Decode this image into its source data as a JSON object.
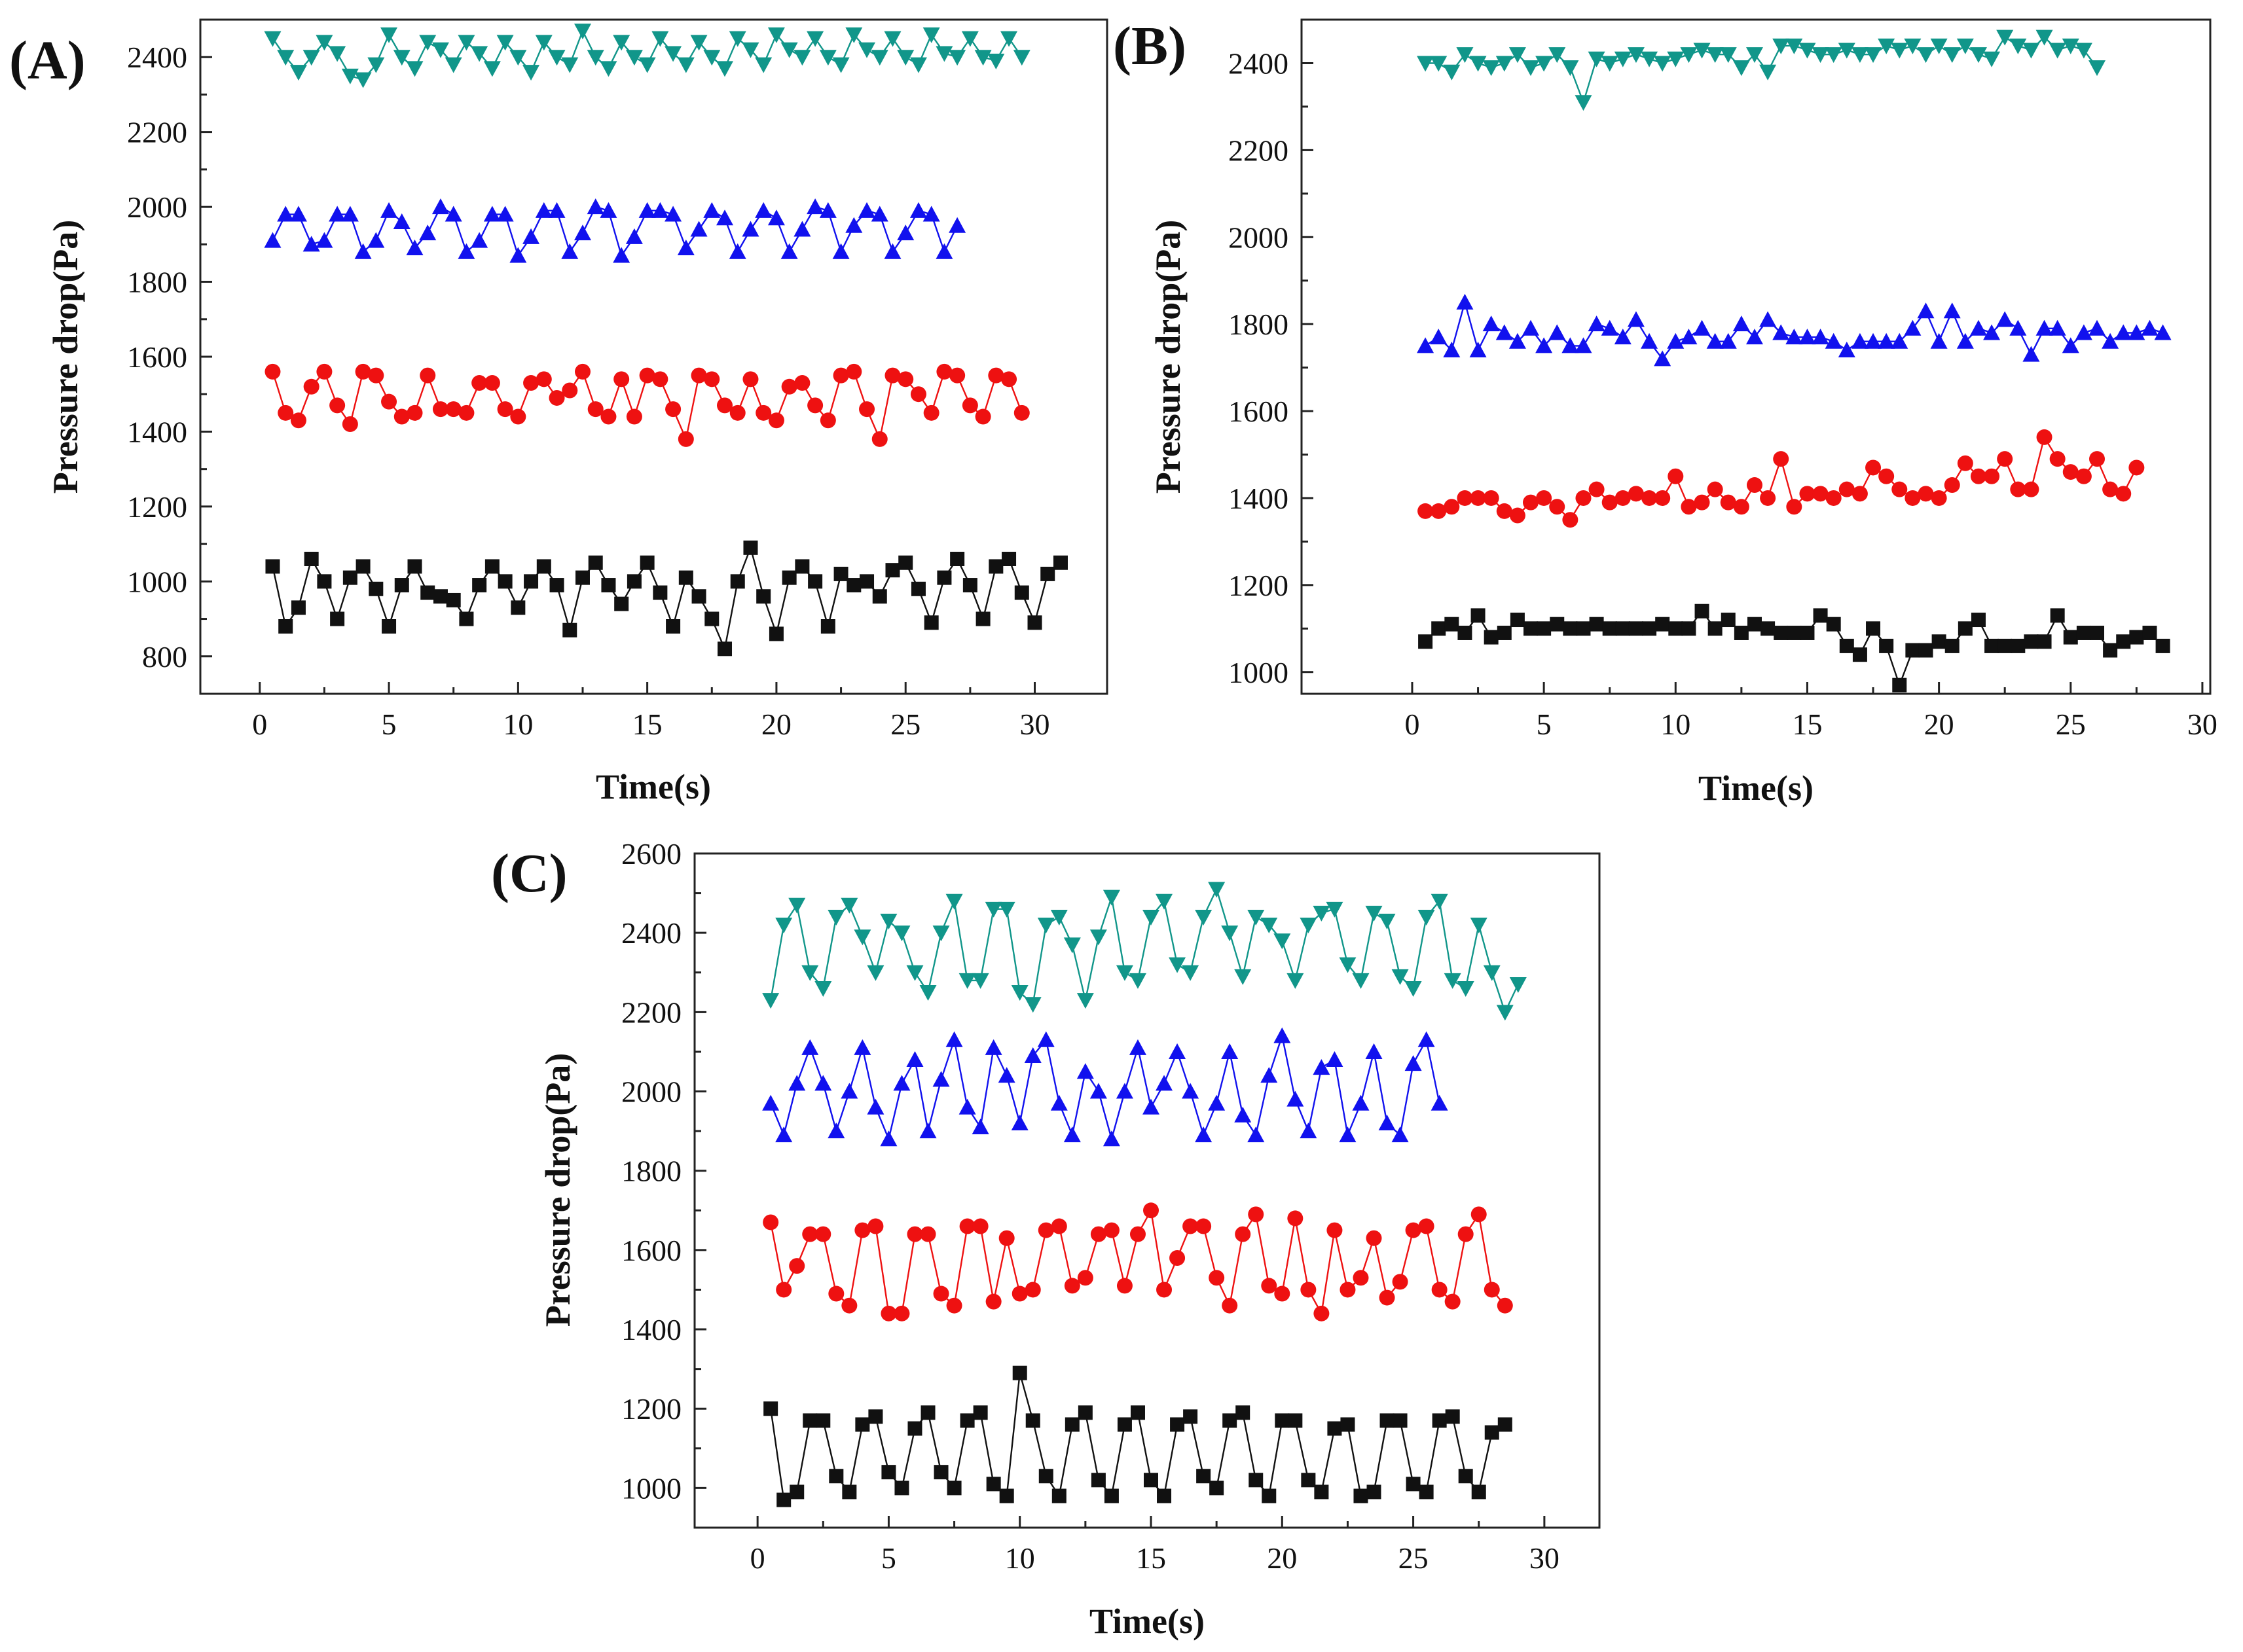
{
  "figure": {
    "series_colors": {
      "black": "#111111",
      "red": "#ee1111",
      "blue": "#1111ee",
      "teal": "#11968a"
    }
  },
  "chart_data": [
    {
      "panel": "(A)",
      "type": "line",
      "xlabel": "Time(s)",
      "ylabel": "Pressure drop(Pa)",
      "xlim": [
        -2.3,
        32.8
      ],
      "ylim": [
        700,
        2500
      ],
      "xticks": [
        0,
        5,
        10,
        15,
        20,
        25,
        30
      ],
      "yticks": [
        800,
        1000,
        1200,
        1400,
        1600,
        1800,
        2000,
        2200,
        2400
      ],
      "x_start": 0.5,
      "x_step": 0.5,
      "series": [
        {
          "name": "square",
          "marker": "square",
          "color": "#111111",
          "values": [
            1040,
            880,
            930,
            1060,
            1000,
            900,
            1010,
            1040,
            980,
            880,
            990,
            1040,
            970,
            960,
            950,
            900,
            990,
            1040,
            1000,
            930,
            1000,
            1040,
            990,
            870,
            1010,
            1050,
            990,
            940,
            1000,
            1050,
            970,
            880,
            1010,
            960,
            900,
            820,
            1000,
            1090,
            960,
            860,
            1010,
            1040,
            1000,
            880,
            1020,
            990,
            1000,
            960,
            1030,
            1050,
            980,
            890,
            1010,
            1060,
            990,
            900,
            1040,
            1060,
            970,
            890,
            1020,
            1050
          ]
        },
        {
          "name": "circle",
          "marker": "circle",
          "color": "#ee1111",
          "values": [
            1560,
            1450,
            1430,
            1520,
            1560,
            1470,
            1420,
            1560,
            1550,
            1480,
            1440,
            1450,
            1550,
            1460,
            1460,
            1450,
            1530,
            1530,
            1460,
            1440,
            1530,
            1540,
            1490,
            1510,
            1560,
            1460,
            1440,
            1540,
            1440,
            1550,
            1540,
            1460,
            1380,
            1550,
            1540,
            1470,
            1450,
            1540,
            1450,
            1430,
            1520,
            1530,
            1470,
            1430,
            1550,
            1560,
            1460,
            1380,
            1550,
            1540,
            1500,
            1450,
            1560,
            1550,
            1470,
            1440,
            1550,
            1540,
            1450
          ]
        },
        {
          "name": "triangle",
          "marker": "triangle-up",
          "color": "#1111ee",
          "values": [
            1910,
            1980,
            1980,
            1900,
            1910,
            1980,
            1980,
            1880,
            1910,
            1990,
            1960,
            1890,
            1930,
            2000,
            1980,
            1880,
            1910,
            1980,
            1980,
            1870,
            1920,
            1990,
            1990,
            1880,
            1930,
            2000,
            1990,
            1870,
            1920,
            1990,
            1990,
            1980,
            1890,
            1940,
            1990,
            1970,
            1880,
            1940,
            1990,
            1970,
            1880,
            1940,
            2000,
            1990,
            1880,
            1950,
            1990,
            1980,
            1880,
            1930,
            1990,
            1980,
            1880,
            1950
          ]
        },
        {
          "name": "triangle-down",
          "marker": "triangle-down",
          "color": "#11968a",
          "values": [
            2450,
            2400,
            2360,
            2400,
            2440,
            2410,
            2350,
            2340,
            2380,
            2460,
            2400,
            2370,
            2440,
            2420,
            2380,
            2440,
            2410,
            2370,
            2440,
            2400,
            2360,
            2440,
            2400,
            2380,
            2470,
            2400,
            2370,
            2440,
            2400,
            2380,
            2450,
            2410,
            2380,
            2440,
            2400,
            2370,
            2450,
            2420,
            2380,
            2460,
            2420,
            2400,
            2450,
            2400,
            2380,
            2460,
            2420,
            2400,
            2450,
            2400,
            2380,
            2460,
            2410,
            2400,
            2450,
            2400,
            2390,
            2450,
            2400
          ]
        }
      ]
    },
    {
      "panel": "(B)",
      "type": "line",
      "xlabel": "Time(s)",
      "ylabel": "Pressure drop(Pa)",
      "xlim": [
        -4.2,
        30.3
      ],
      "ylim": [
        950,
        2500
      ],
      "xticks": [
        0,
        5,
        10,
        15,
        20,
        25,
        30
      ],
      "yticks": [
        1000,
        1200,
        1400,
        1600,
        1800,
        2000,
        2200,
        2400
      ],
      "x_start": 0.5,
      "x_step": 0.5,
      "series": [
        {
          "name": "square",
          "marker": "square",
          "color": "#111111",
          "values": [
            1070,
            1100,
            1110,
            1090,
            1130,
            1080,
            1090,
            1120,
            1100,
            1100,
            1110,
            1100,
            1100,
            1110,
            1100,
            1100,
            1100,
            1100,
            1110,
            1100,
            1100,
            1140,
            1100,
            1120,
            1090,
            1110,
            1100,
            1090,
            1090,
            1090,
            1130,
            1110,
            1060,
            1040,
            1100,
            1060,
            970,
            1050,
            1050,
            1070,
            1060,
            1100,
            1120,
            1060,
            1060,
            1060,
            1070,
            1070,
            1130,
            1080,
            1090,
            1090,
            1050,
            1070,
            1080,
            1090,
            1060
          ]
        },
        {
          "name": "circle",
          "marker": "circle",
          "color": "#ee1111",
          "values": [
            1370,
            1370,
            1380,
            1400,
            1400,
            1400,
            1370,
            1360,
            1390,
            1400,
            1380,
            1350,
            1400,
            1420,
            1390,
            1400,
            1410,
            1400,
            1400,
            1450,
            1380,
            1390,
            1420,
            1390,
            1380,
            1430,
            1400,
            1490,
            1380,
            1410,
            1410,
            1400,
            1420,
            1410,
            1470,
            1450,
            1420,
            1400,
            1410,
            1400,
            1430,
            1480,
            1450,
            1450,
            1490,
            1420,
            1420,
            1540,
            1490,
            1460,
            1450,
            1490,
            1420,
            1410,
            1470
          ]
        },
        {
          "name": "triangle",
          "marker": "triangle-up",
          "color": "#1111ee",
          "values": [
            1750,
            1770,
            1740,
            1850,
            1740,
            1800,
            1780,
            1760,
            1790,
            1750,
            1780,
            1750,
            1750,
            1800,
            1790,
            1770,
            1810,
            1760,
            1720,
            1760,
            1770,
            1790,
            1760,
            1760,
            1800,
            1770,
            1810,
            1780,
            1770,
            1770,
            1770,
            1760,
            1740,
            1760,
            1760,
            1760,
            1760,
            1790,
            1830,
            1760,
            1830,
            1760,
            1790,
            1780,
            1810,
            1790,
            1730,
            1790,
            1790,
            1750,
            1780,
            1790,
            1760,
            1780,
            1780,
            1790,
            1780
          ]
        },
        {
          "name": "triangle-down",
          "marker": "triangle-down",
          "color": "#11968a",
          "values": [
            2400,
            2400,
            2380,
            2420,
            2400,
            2390,
            2400,
            2420,
            2390,
            2400,
            2420,
            2390,
            2310,
            2410,
            2400,
            2410,
            2420,
            2410,
            2400,
            2410,
            2420,
            2430,
            2420,
            2420,
            2390,
            2420,
            2380,
            2440,
            2440,
            2430,
            2420,
            2420,
            2430,
            2420,
            2420,
            2440,
            2430,
            2440,
            2420,
            2440,
            2420,
            2440,
            2420,
            2410,
            2460,
            2440,
            2430,
            2460,
            2430,
            2440,
            2430,
            2390
          ]
        }
      ]
    },
    {
      "panel": "(C)",
      "type": "line",
      "xlabel": "Time(s)",
      "ylabel": "Pressure drop(Pa)",
      "xlim": [
        -2.4,
        32.1
      ],
      "ylim": [
        900,
        2600
      ],
      "xticks": [
        0,
        5,
        10,
        15,
        20,
        25,
        30
      ],
      "yticks": [
        1000,
        1200,
        1400,
        1600,
        1800,
        2000,
        2200,
        2400,
        2600
      ],
      "x_start": 0.5,
      "x_step": 0.5,
      "series": [
        {
          "name": "square",
          "marker": "square",
          "color": "#111111",
          "values": [
            1200,
            970,
            990,
            1170,
            1170,
            1030,
            990,
            1160,
            1180,
            1040,
            1000,
            1150,
            1190,
            1040,
            1000,
            1170,
            1190,
            1010,
            980,
            1290,
            1170,
            1030,
            980,
            1160,
            1190,
            1020,
            980,
            1160,
            1190,
            1020,
            980,
            1160,
            1180,
            1030,
            1000,
            1170,
            1190,
            1020,
            980,
            1170,
            1170,
            1020,
            990,
            1150,
            1160,
            980,
            990,
            1170,
            1170,
            1010,
            990,
            1170,
            1180,
            1030,
            990,
            1140,
            1160
          ]
        },
        {
          "name": "circle",
          "marker": "circle",
          "color": "#ee1111",
          "values": [
            1670,
            1500,
            1560,
            1640,
            1640,
            1490,
            1460,
            1650,
            1660,
            1440,
            1440,
            1640,
            1640,
            1490,
            1460,
            1660,
            1660,
            1470,
            1630,
            1490,
            1500,
            1650,
            1660,
            1510,
            1530,
            1640,
            1650,
            1510,
            1640,
            1700,
            1500,
            1580,
            1660,
            1660,
            1530,
            1460,
            1640,
            1690,
            1510,
            1490,
            1680,
            1500,
            1440,
            1650,
            1500,
            1530,
            1630,
            1480,
            1520,
            1650,
            1660,
            1500,
            1470,
            1640,
            1690,
            1500,
            1460
          ]
        },
        {
          "name": "triangle",
          "marker": "triangle-up",
          "color": "#1111ee",
          "values": [
            1970,
            1890,
            2020,
            2110,
            2020,
            1900,
            2000,
            2110,
            1960,
            1880,
            2020,
            2080,
            1900,
            2030,
            2130,
            1960,
            1910,
            2110,
            2040,
            1920,
            2090,
            2130,
            1970,
            1890,
            2050,
            2000,
            1880,
            2000,
            2110,
            1960,
            2020,
            2100,
            2000,
            1890,
            1970,
            2100,
            1940,
            1890,
            2040,
            2140,
            1980,
            1900,
            2060,
            2080,
            1890,
            1970,
            2100,
            1920,
            1890,
            2070,
            2130,
            1970
          ]
        },
        {
          "name": "triangle-down",
          "marker": "triangle-down",
          "color": "#11968a",
          "values": [
            2230,
            2420,
            2470,
            2300,
            2260,
            2440,
            2470,
            2390,
            2300,
            2430,
            2400,
            2300,
            2250,
            2400,
            2480,
            2280,
            2280,
            2460,
            2460,
            2250,
            2220,
            2420,
            2440,
            2370,
            2230,
            2390,
            2490,
            2300,
            2280,
            2440,
            2480,
            2320,
            2300,
            2440,
            2510,
            2400,
            2290,
            2440,
            2420,
            2380,
            2280,
            2420,
            2450,
            2460,
            2320,
            2280,
            2450,
            2430,
            2290,
            2260,
            2440,
            2480,
            2280,
            2260,
            2420,
            2300,
            2200,
            2270
          ]
        }
      ]
    }
  ]
}
